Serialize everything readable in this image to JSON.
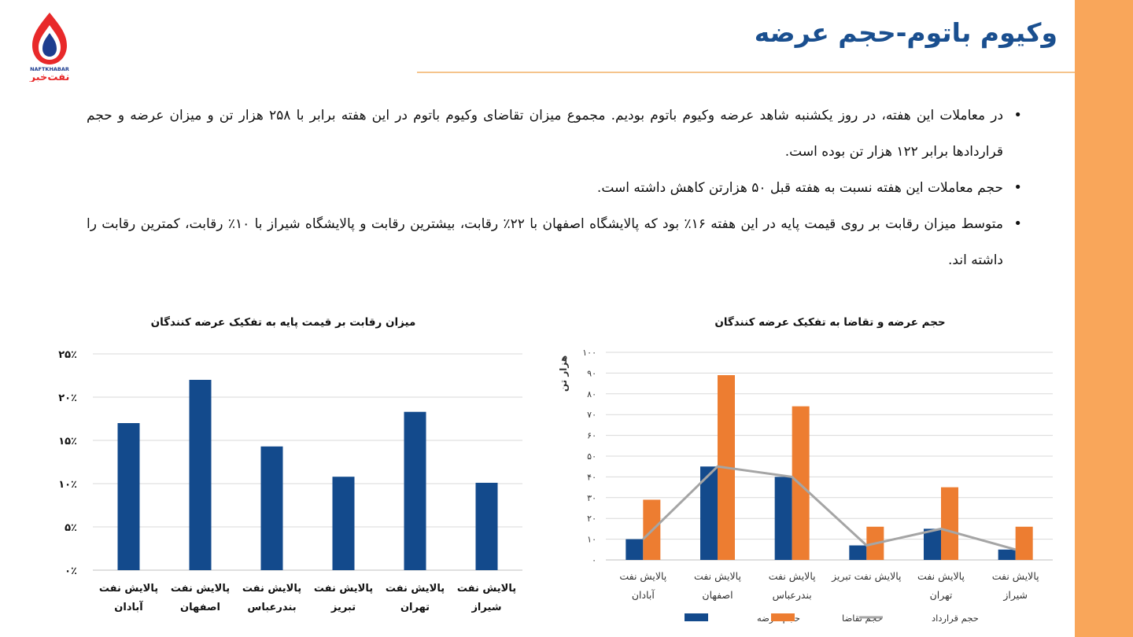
{
  "page": {
    "title": "وکیوم باتوم-حجم عرضه",
    "logo_text": "نفت‌خبر",
    "logo_latin": "NAFTKHABAR",
    "accent_color": "#1a4f8f",
    "band_color": "#f9a65a"
  },
  "bullets": [
    "در معاملات این هفته، در روز یکشنبه شاهد عرضه وکیوم باتوم بودیم. مجموع میزان تقاضای وکیوم باتوم در این هفته برابر با ۲۵۸ هزار تن و میزان عرضه و حجم قراردادها برابر ۱۲۲ هزار تن بوده است.",
    "حجم معاملات این هفته نسبت به هفته قبل ۵۰ هزارتن کاهش داشته است.",
    "متوسط میزان رقابت بر روی قیمت پایه در این هفته ۱۶٪ بود که پالایشگاه اصفهان با ۲۲٪ رقابت، بیشترین رقابت و پالایشگاه شیراز با ۱۰٪ رقابت، کمترین رقابت را داشته اند."
  ],
  "chart_data": [
    {
      "type": "bar",
      "title": "میزان رقابت بر قیمت پایه به تفکیک عرضه کنندگان",
      "categories": [
        [
          "پالایش نفت",
          "آبادان"
        ],
        [
          "پالایش نفت",
          "اصفهان"
        ],
        [
          "پالایش نفت",
          "بندرعباس"
        ],
        [
          "پالایش نفت",
          "تبریز"
        ],
        [
          "پالایش نفت",
          "تهران"
        ],
        [
          "پالایش نفت",
          "شیراز"
        ]
      ],
      "series": [
        {
          "values": [
            17,
            22,
            14.3,
            10.8,
            18.3,
            10.1
          ],
          "color": "#134a8c"
        }
      ],
      "ylim": [
        0,
        25
      ],
      "yticks": [
        0,
        5,
        10,
        15,
        20,
        25
      ],
      "ytick_labels": [
        "۰٪",
        "۵٪",
        "۱۰٪",
        "۱۵٪",
        "۲۰٪",
        "۲۵٪"
      ],
      "grid": true
    },
    {
      "type": "bar",
      "title": "حجم عرضه و تقاضا به تفکیک عرضه کنندگان",
      "ylabel": "هزار تن",
      "categories": [
        [
          "پالایش نفت",
          "آبادان"
        ],
        [
          "پالایش نفت",
          "اصفهان"
        ],
        [
          "پالایش نفت",
          "بندرعباس"
        ],
        [
          "پالایش نفت تبریز"
        ],
        [
          "پالایش نفت",
          "تهران"
        ],
        [
          "پالایش نفت",
          "شیراز"
        ]
      ],
      "series": [
        {
          "name": "حجم عرضه",
          "type": "bar",
          "values": [
            10,
            45,
            40,
            7,
            15,
            5
          ],
          "color": "#134a8c"
        },
        {
          "name": "حجم تقاضا",
          "type": "bar",
          "values": [
            29,
            89,
            74,
            16,
            35,
            16
          ],
          "color": "#ed7d31"
        },
        {
          "name": "حجم قرارداد",
          "type": "line",
          "values": [
            10,
            45,
            40,
            7,
            15,
            5
          ],
          "color": "#a5a5a5"
        }
      ],
      "ylim": [
        0,
        100
      ],
      "yticks": [
        0,
        10,
        20,
        30,
        40,
        50,
        60,
        70,
        80,
        90,
        100
      ],
      "ytick_labels": [
        "۰",
        "۱۰",
        "۲۰",
        "۳۰",
        "۴۰",
        "۵۰",
        "۶۰",
        "۷۰",
        "۸۰",
        "۹۰",
        "۱۰۰"
      ],
      "legend": "bottom",
      "grid": true
    }
  ]
}
